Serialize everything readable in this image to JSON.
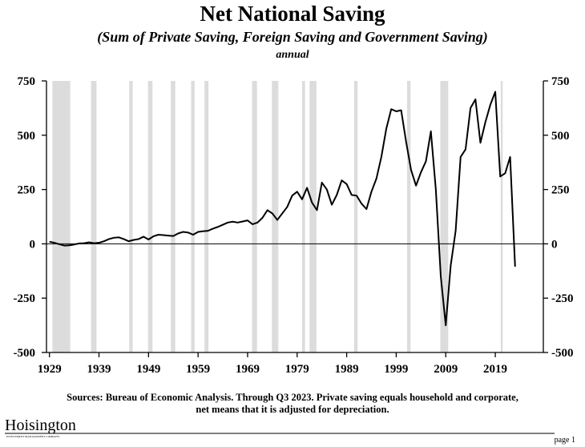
{
  "chart_data": {
    "type": "line",
    "title": "Net National Saving",
    "subtitle": "(Sum of Private Saving, Foreign Saving and Government Saving)",
    "frequency": "annual",
    "x": [
      1929,
      1930,
      1931,
      1932,
      1933,
      1934,
      1935,
      1936,
      1937,
      1938,
      1939,
      1940,
      1941,
      1942,
      1943,
      1944,
      1945,
      1946,
      1947,
      1948,
      1949,
      1950,
      1951,
      1952,
      1953,
      1954,
      1955,
      1956,
      1957,
      1958,
      1959,
      1960,
      1961,
      1962,
      1963,
      1964,
      1965,
      1966,
      1967,
      1968,
      1969,
      1970,
      1971,
      1972,
      1973,
      1974,
      1975,
      1976,
      1977,
      1978,
      1979,
      1980,
      1981,
      1982,
      1983,
      1984,
      1985,
      1986,
      1987,
      1988,
      1989,
      1990,
      1991,
      1992,
      1993,
      1994,
      1995,
      1996,
      1997,
      1998,
      1999,
      2000,
      2001,
      2002,
      2003,
      2004,
      2005,
      2006,
      2007,
      2008,
      2009,
      2010,
      2011,
      2012,
      2013,
      2014,
      2015,
      2016,
      2017,
      2018,
      2019,
      2020,
      2021,
      2022,
      2023
    ],
    "series": [
      {
        "name": "Net National Saving",
        "color": "#000000",
        "values": [
          10,
          5,
          -2,
          -8,
          -7,
          -3,
          2,
          3,
          7,
          3,
          5,
          12,
          22,
          28,
          30,
          22,
          12,
          18,
          22,
          33,
          20,
          35,
          42,
          40,
          38,
          36,
          48,
          55,
          52,
          42,
          55,
          58,
          60,
          70,
          78,
          88,
          98,
          102,
          98,
          103,
          108,
          90,
          98,
          120,
          155,
          140,
          110,
          140,
          170,
          222,
          240,
          205,
          258,
          190,
          155,
          282,
          250,
          180,
          225,
          292,
          275,
          225,
          222,
          185,
          160,
          240,
          300,
          400,
          530,
          620,
          610,
          615,
          470,
          340,
          268,
          330,
          380,
          518,
          250,
          -150,
          -375,
          -100,
          60,
          400,
          435,
          625,
          665,
          465,
          560,
          640,
          700,
          310,
          325,
          400,
          -105
        ]
      }
    ],
    "recessions": [
      [
        1929.6,
        1933.2
      ],
      [
        1937.4,
        1938.5
      ],
      [
        1945.1,
        1945.8
      ],
      [
        1948.9,
        1949.8
      ],
      [
        1953.5,
        1954.4
      ],
      [
        1957.6,
        1958.3
      ],
      [
        1960.3,
        1961.1
      ],
      [
        1969.9,
        1970.9
      ],
      [
        1973.9,
        1975.2
      ],
      [
        1980.0,
        1980.6
      ],
      [
        1981.5,
        1982.9
      ],
      [
        1990.5,
        1991.2
      ],
      [
        2001.2,
        2001.9
      ],
      [
        2007.9,
        2009.5
      ],
      [
        2020.1,
        2020.5
      ]
    ],
    "recession_color": "#dcdcdc",
    "xlim": [
      1928.4,
      2028.7
    ],
    "xticks": [
      1929,
      1939,
      1949,
      1959,
      1969,
      1979,
      1989,
      1999,
      2009,
      2019
    ],
    "ylim": [
      -500,
      750
    ],
    "yticks": [
      750,
      500,
      250,
      0,
      -250,
      -500
    ],
    "y2lim": [
      -500,
      750
    ],
    "y2ticks": [
      750,
      500,
      250,
      0,
      -250,
      -500
    ],
    "source": "Sources: Bureau of Economic Analysis. Through Q3 2023. Private saving equals household and corporate,",
    "source_line2": "net means that it is adjusted for depreciation."
  },
  "footer": {
    "logo": "Hoisington",
    "logo_sub": "INVESTMENT MANAGEMENT COMPANY",
    "page": "page 1"
  }
}
